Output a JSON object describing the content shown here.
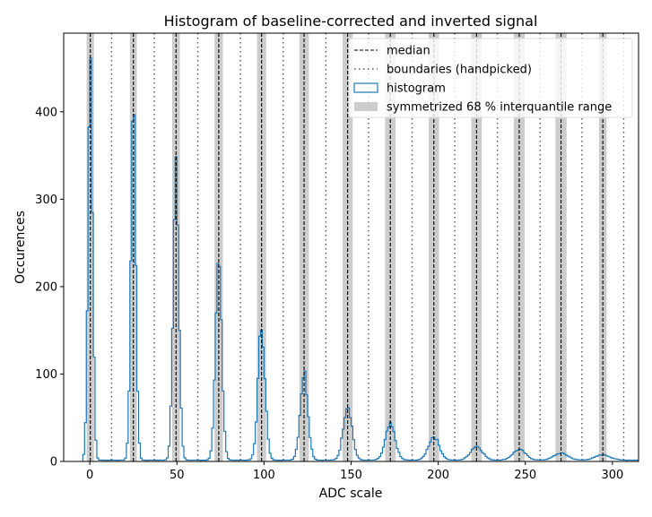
{
  "chart_data": {
    "type": "histogram",
    "title": "Histogram of baseline-corrected and inverted signal",
    "xlabel": "ADC scale",
    "ylabel": "Occurences",
    "xlim": [
      -15,
      315
    ],
    "ylim": [
      0,
      490
    ],
    "xticks": [
      0,
      50,
      100,
      150,
      200,
      250,
      300
    ],
    "yticks": [
      0,
      100,
      200,
      300,
      400
    ],
    "grid": false,
    "legend_position": "top-right",
    "legend": [
      {
        "label": "median",
        "style": "dashed-line"
      },
      {
        "label": "boundaries (handpicked)",
        "style": "dotted-line"
      },
      {
        "label": "histogram",
        "style": "step-outline"
      },
      {
        "label": "symmetrized 68 % interquantile range",
        "style": "band"
      }
    ],
    "colors": {
      "histogram": "#1f77b4",
      "median": "#000000",
      "boundaries": "#555555",
      "band": "#cccccc"
    },
    "peaks": [
      {
        "median": 0.3,
        "iqr_low": -1.8,
        "iqr_high": 2.4,
        "peak_height": 465,
        "sigma": 1.3
      },
      {
        "median": 25,
        "iqr_low": 23,
        "iqr_high": 27,
        "peak_height": 410,
        "sigma": 1.4
      },
      {
        "median": 49.5,
        "iqr_low": 47.3,
        "iqr_high": 51.7,
        "peak_height": 350,
        "sigma": 1.6
      },
      {
        "median": 74,
        "iqr_low": 71.6,
        "iqr_high": 76.4,
        "peak_height": 225,
        "sigma": 1.8
      },
      {
        "median": 98.6,
        "iqr_low": 96,
        "iqr_high": 101.2,
        "peak_height": 155,
        "sigma": 2.0
      },
      {
        "median": 123,
        "iqr_low": 120.3,
        "iqr_high": 125.7,
        "peak_height": 100,
        "sigma": 2.2
      },
      {
        "median": 148,
        "iqr_low": 145.1,
        "iqr_high": 150.9,
        "peak_height": 63,
        "sigma": 2.5
      },
      {
        "median": 172.5,
        "iqr_low": 169.5,
        "iqr_high": 175.5,
        "peak_height": 40,
        "sigma": 2.8
      },
      {
        "median": 197.5,
        "iqr_low": 194.5,
        "iqr_high": 200.5,
        "peak_height": 27,
        "sigma": 3.1
      },
      {
        "median": 222,
        "iqr_low": 219,
        "iqr_high": 225,
        "peak_height": 16,
        "sigma": 3.4
      },
      {
        "median": 246.5,
        "iqr_low": 243.4,
        "iqr_high": 249.6,
        "peak_height": 12,
        "sigma": 3.7
      },
      {
        "median": 270.5,
        "iqr_low": 267.3,
        "iqr_high": 273.7,
        "peak_height": 8,
        "sigma": 4.0
      },
      {
        "median": 294.5,
        "iqr_low": 292.3,
        "iqr_high": 296.7,
        "peak_height": 6,
        "sigma": 4.3
      }
    ],
    "boundaries": [
      12.5,
      37,
      62,
      86.5,
      111,
      135.5,
      160,
      185,
      209.5,
      234,
      258.5,
      282.5,
      306.5
    ],
    "background_level": 1.5
  }
}
